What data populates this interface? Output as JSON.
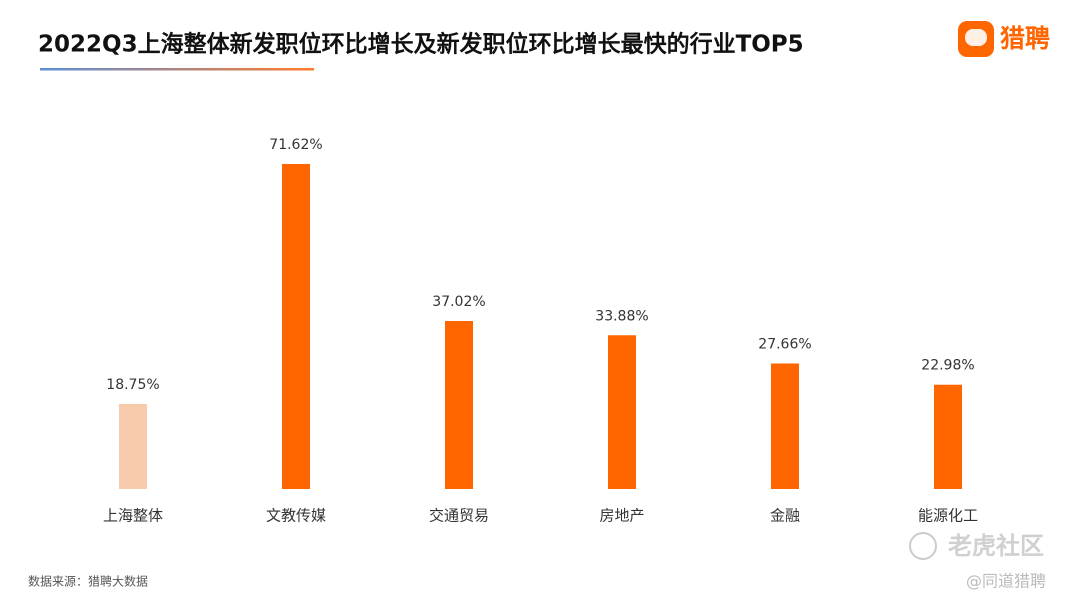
{
  "chart_data": {
    "type": "bar",
    "title": "2022Q3上海整体新发职位环比增长及新发职位环比增长最快的行业TOP5",
    "categories": [
      "上海整体",
      "文教传媒",
      "交通贸易",
      "房地产",
      "金融",
      "能源化工"
    ],
    "values": [
      18.75,
      71.62,
      37.02,
      33.88,
      27.66,
      22.98
    ],
    "value_labels": [
      "18.75%",
      "71.62%",
      "37.02%",
      "33.88%",
      "27.66%",
      "22.98%"
    ],
    "colors": [
      "#f8cbad",
      "#ff6600",
      "#ff6600",
      "#ff6600",
      "#ff6600",
      "#ff6600"
    ],
    "source": "数据来源：猎聘大数据"
  },
  "logo_text": "猎聘",
  "watermarks": [
    "老虎社区",
    "@同道猎聘"
  ]
}
